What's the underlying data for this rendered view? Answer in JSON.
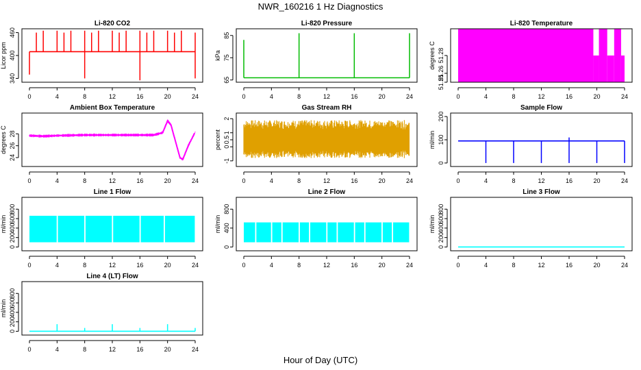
{
  "page": {
    "title": "NWR_160216  1 Hz Diagnostics",
    "xlabel": "Hour of Day (UTC)"
  },
  "chart_data": [
    {
      "type": "line",
      "title": "Li-820 CO2",
      "ylabel": "Licor ppm",
      "color": "#ff0000",
      "xlim": [
        0,
        24
      ],
      "ylim": [
        330,
        470
      ],
      "yticks": [
        340,
        400,
        460
      ],
      "xticks": [
        0,
        4,
        8,
        12,
        16,
        20,
        24
      ],
      "pattern": "baseline-spikes",
      "series": [
        {
          "baseline": 410,
          "spikes_up": [
            [
              1.0,
              460
            ],
            [
              2.0,
              465
            ],
            [
              4.0,
              465
            ],
            [
              5.0,
              460
            ],
            [
              6.0,
              465
            ],
            [
              8.0,
              465
            ],
            [
              9.0,
              460
            ],
            [
              10.0,
              465
            ],
            [
              12.0,
              465
            ],
            [
              13.0,
              460
            ],
            [
              14.0,
              465
            ],
            [
              16.0,
              465
            ],
            [
              17.0,
              460
            ],
            [
              18.0,
              465
            ],
            [
              20.0,
              465
            ],
            [
              21.0,
              460
            ],
            [
              22.0,
              465
            ],
            [
              24.0,
              460
            ]
          ],
          "spikes_down": [
            [
              0.0,
              350
            ],
            [
              8.0,
              340
            ],
            [
              16.0,
              335
            ],
            [
              24.0,
              340
            ]
          ]
        }
      ]
    },
    {
      "type": "line",
      "title": "Li-820 Pressure",
      "ylabel": "kPa",
      "color": "#00bb00",
      "xlim": [
        0,
        24
      ],
      "ylim": [
        64,
        88
      ],
      "yticks": [
        65,
        75,
        85
      ],
      "xticks": [
        0,
        4,
        8,
        12,
        16,
        20,
        24
      ],
      "pattern": "baseline-spikes",
      "series": [
        {
          "baseline": 66,
          "spikes_up": [
            [
              0.0,
              83
            ],
            [
              8.0,
              86
            ],
            [
              16.0,
              86
            ],
            [
              24.0,
              86
            ]
          ],
          "spikes_down": []
        }
      ]
    },
    {
      "type": "area",
      "title": "Li-820 Temperature",
      "ylabel": "degrees C",
      "color": "#ff00ff",
      "xlim": [
        0,
        24
      ],
      "ylim": [
        51.25,
        51.31
      ],
      "yticks": [
        51.25,
        51.26,
        51.28
      ],
      "xticks": [
        0,
        4,
        8,
        12,
        16,
        20,
        24
      ],
      "pattern": "filled-steps",
      "series": [
        {
          "steps": [
            [
              0,
              19.5,
              51.31
            ],
            [
              19.5,
              20.3,
              51.28
            ],
            [
              20.3,
              21.5,
              51.31
            ],
            [
              21.5,
              22.5,
              51.28
            ],
            [
              22.5,
              23.5,
              51.31
            ],
            [
              23.5,
              24,
              51.28
            ]
          ]
        }
      ]
    },
    {
      "type": "line",
      "title": "Ambient Box Temperature",
      "ylabel": "degrees C",
      "color": "#ff00ff",
      "xlim": [
        0,
        24
      ],
      "ylim": [
        22.5,
        31.5
      ],
      "yticks": [
        24,
        26,
        28
      ],
      "xticks": [
        0,
        4,
        8,
        12,
        16,
        20,
        24
      ],
      "pattern": "noisy-curve",
      "series": [
        {
          "points": [
            [
              0,
              27.7
            ],
            [
              2,
              27.6
            ],
            [
              4,
              27.7
            ],
            [
              8,
              27.8
            ],
            [
              12,
              27.8
            ],
            [
              16,
              27.8
            ],
            [
              18,
              27.8
            ],
            [
              19.3,
              28.2
            ],
            [
              20,
              30.2
            ],
            [
              20.5,
              29.5
            ],
            [
              21.2,
              26.5
            ],
            [
              21.8,
              24.0
            ],
            [
              22.2,
              23.7
            ],
            [
              23,
              26.0
            ],
            [
              24,
              28.3
            ]
          ],
          "noise": 0.5
        }
      ]
    },
    {
      "type": "line",
      "title": "Gas Stream RH",
      "ylabel": "percent",
      "color": "#e0a000",
      "xlim": [
        0,
        24
      ],
      "ylim": [
        -1.4,
        2.4
      ],
      "yticks": [
        -1.0,
        0.0,
        0.5,
        1.0,
        2.0
      ],
      "xticks": [
        0,
        4,
        8,
        12,
        16,
        20,
        24
      ],
      "pattern": "noise-band",
      "series": [
        {
          "center": 0.4,
          "amplitude": 1.5
        }
      ]
    },
    {
      "type": "line",
      "title": "Sample Flow",
      "ylabel": "ml/min",
      "color": "#0000ff",
      "xlim": [
        0,
        24
      ],
      "ylim": [
        -15,
        215
      ],
      "yticks": [
        0,
        100,
        200
      ],
      "xticks": [
        0,
        4,
        8,
        12,
        16,
        20,
        24
      ],
      "pattern": "baseline-spikes",
      "series": [
        {
          "baseline": 95,
          "spikes_up": [
            [
              16.0,
              110
            ]
          ],
          "spikes_down": [
            [
              4.0,
              0
            ],
            [
              8.0,
              0
            ],
            [
              12.0,
              0
            ],
            [
              16.0,
              0
            ],
            [
              20.0,
              0
            ],
            [
              24.0,
              0
            ]
          ]
        }
      ]
    },
    {
      "type": "area",
      "title": "Line 1 Flow",
      "ylabel": "ml/min",
      "color": "#00ffff",
      "xlim": [
        0,
        24
      ],
      "ylim": [
        -80,
        1050
      ],
      "yticks": [
        0,
        200,
        400,
        600,
        800
      ],
      "xticks": [
        0,
        4,
        8,
        12,
        16,
        20,
        24
      ],
      "pattern": "filled-band",
      "series": [
        {
          "low": 100,
          "high": 660,
          "gaps": [
            4.0,
            8.0,
            12.0,
            16.0,
            19.5,
            24.0
          ]
        }
      ]
    },
    {
      "type": "area",
      "title": "Line 2 Flow",
      "ylabel": "ml/min",
      "color": "#00ffff",
      "xlim": [
        0,
        24
      ],
      "ylim": [
        -80,
        1050
      ],
      "yticks": [
        0,
        400,
        800
      ],
      "xticks": [
        0,
        4,
        8,
        12,
        16,
        20,
        24
      ],
      "pattern": "filled-band",
      "series": [
        {
          "low": 100,
          "high": 520,
          "gaps": [
            1.7,
            4.0,
            5.5,
            8.0,
            9.5,
            12.0,
            13.5,
            16.0,
            17.5,
            20.0,
            21.5,
            24.0
          ]
        }
      ]
    },
    {
      "type": "line",
      "title": "Line 3 Flow",
      "ylabel": "ml/min",
      "color": "#00ffff",
      "xlim": [
        0,
        24
      ],
      "ylim": [
        -80,
        1050
      ],
      "yticks": [
        0,
        200,
        400,
        600,
        800
      ],
      "xticks": [
        0,
        4,
        8,
        12,
        16,
        20,
        24
      ],
      "pattern": "baseline-spikes",
      "series": [
        {
          "baseline": 0,
          "spikes_up": [],
          "spikes_down": []
        }
      ]
    },
    {
      "type": "line",
      "title": "Line 4 (LT) Flow",
      "ylabel": "ml/min",
      "color": "#00ffff",
      "xlim": [
        0,
        24
      ],
      "ylim": [
        -80,
        1050
      ],
      "yticks": [
        0,
        200,
        400,
        600,
        800
      ],
      "xticks": [
        0,
        4,
        8,
        12,
        16,
        20,
        24
      ],
      "pattern": "baseline-spikes",
      "series": [
        {
          "baseline": 0,
          "spikes_up": [
            [
              4.0,
              150
            ],
            [
              8.0,
              70
            ],
            [
              12.0,
              150
            ],
            [
              16.0,
              70
            ],
            [
              20.0,
              150
            ],
            [
              24.0,
              70
            ]
          ],
          "spikes_down": []
        }
      ]
    }
  ]
}
